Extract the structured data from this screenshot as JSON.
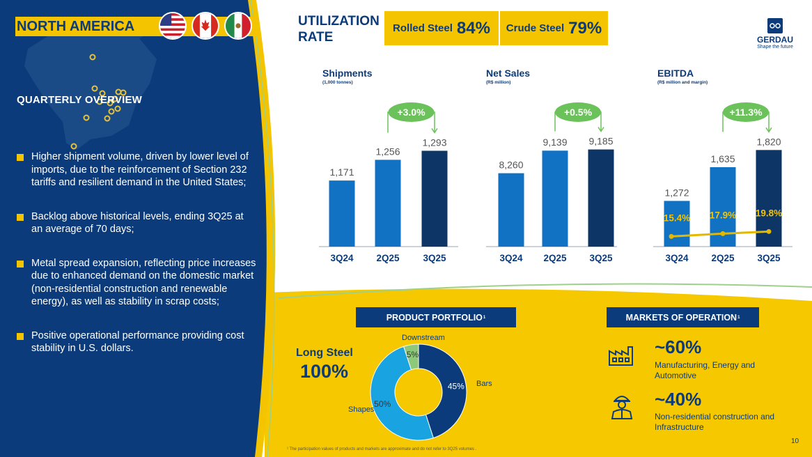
{
  "region": {
    "title": "NORTH AMERICA",
    "flags": [
      "us-flag",
      "canada-flag",
      "mexico-flag"
    ]
  },
  "overview": {
    "title": "QUARTERLY OVERVIEW",
    "bullets": [
      "Higher shipment volume, driven by lower level of imports, due to the reinforcement of Section 232 tariffs and resilient demand in the United States;",
      "Backlog above historical levels, ending 3Q25 at an average of 70 days;",
      "Metal spread expansion, reflecting price increases due to enhanced demand on the domestic market (non-residential construction and renewable energy), as well as stability in scrap costs;",
      "Positive operational performance providing cost stability in U.S. dollars."
    ]
  },
  "utilization": {
    "title": "UTILIZATION RATE",
    "rolled_label": "Rolled Steel",
    "rolled_value": "84%",
    "crude_label": "Crude Steel",
    "crude_value": "79%"
  },
  "logo": {
    "name": "GERDAU",
    "tagline": "Shape the future"
  },
  "chart_data": [
    {
      "type": "bar",
      "title": "Shipments",
      "subtitle": "(1,000 tonnes)",
      "categories": [
        "3Q24",
        "2Q25",
        "3Q25"
      ],
      "values": [
        1171,
        1256,
        1293
      ],
      "value_labels": [
        "1,171",
        "1,256",
        "1,293"
      ],
      "change_label": "+3.0%",
      "ylim": [
        900,
        1300
      ]
    },
    {
      "type": "bar",
      "title": "Net Sales",
      "subtitle": "(R$ million)",
      "categories": [
        "3Q24",
        "2Q25",
        "3Q25"
      ],
      "values": [
        8260,
        9139,
        9185
      ],
      "value_labels": [
        "8,260",
        "9,139",
        "9,185"
      ],
      "change_label": "+0.5%",
      "ylim": [
        5400,
        9200
      ]
    },
    {
      "type": "bar",
      "title": "EBITDA",
      "subtitle": "(R$ million and margin)",
      "categories": [
        "3Q24",
        "2Q25",
        "3Q25"
      ],
      "values": [
        1272,
        1635,
        1820
      ],
      "value_labels": [
        "1,272",
        "1,635",
        "1,820"
      ],
      "change_label": "+11.3%",
      "ylim": [
        780,
        1830
      ],
      "margin_series": {
        "values": [
          15.4,
          17.9,
          19.8
        ],
        "labels": [
          "15.4%",
          "17.9%",
          "19.8%"
        ]
      }
    },
    {
      "type": "pie",
      "title": "PRODUCT PORTFOLIO",
      "categories": [
        "Bars",
        "Shapes",
        "Downstream"
      ],
      "values": [
        45,
        50,
        5
      ],
      "value_labels": [
        "45%",
        "50%",
        "5%"
      ]
    }
  ],
  "portfolio": {
    "title": "PRODUCT PORTFOLIO",
    "sup": "1",
    "long_steel_label": "Long Steel",
    "long_steel_value": "100%"
  },
  "markets": {
    "title": "MARKETS OF OPERATION",
    "sup": "1",
    "items": [
      {
        "pct": "~60%",
        "desc": "Manufacturing, Energy and Automotive",
        "icon": "factory-icon"
      },
      {
        "pct": "~40%",
        "desc": "Non-residential construction and Infrastructure",
        "icon": "construction-worker-icon"
      }
    ]
  },
  "footnote": "¹ The participation values of products and markets are approximate and do not refer to 3Q25 volumes .",
  "page_number": "10",
  "colors": {
    "navy": "#0b3b7a",
    "blue": "#1172c4",
    "dark_bar": "#0d3566",
    "yellow": "#f4c400",
    "green": "#6cc25a",
    "light_blue": "#19a3e0"
  }
}
